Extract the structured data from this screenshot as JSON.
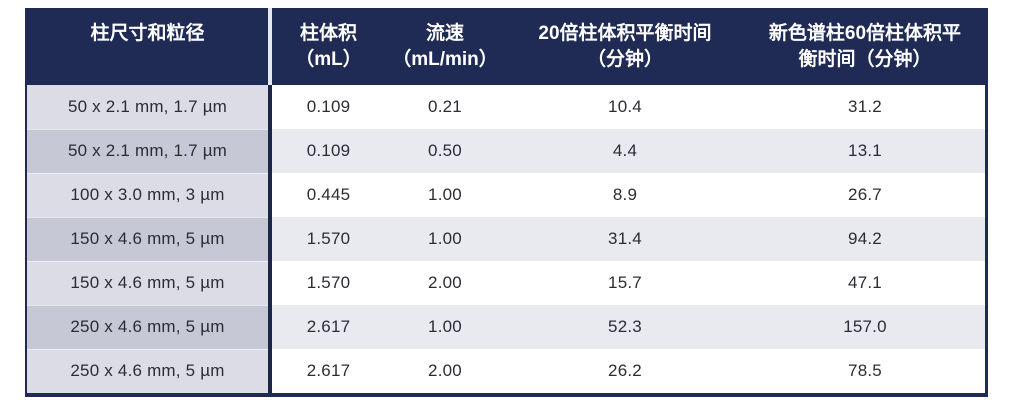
{
  "table": {
    "columns": [
      {
        "lines": [
          "柱尺寸和粒径"
        ]
      },
      {
        "lines": [
          "柱体积",
          "（mL）"
        ]
      },
      {
        "lines": [
          "流速",
          "（mL/min）"
        ]
      },
      {
        "lines": [
          "20倍柱体积平衡时间",
          "（分钟）"
        ]
      },
      {
        "lines": [
          "新色谱柱60倍柱体积平",
          "衡时间（分钟）"
        ]
      }
    ],
    "rows": [
      {
        "size": "50 x 2.1 mm, 1.7 µm",
        "volume": "0.109",
        "flow": "0.21",
        "eq20": "10.4",
        "eq60": "31.2"
      },
      {
        "size": "50 x 2.1 mm, 1.7 µm",
        "volume": "0.109",
        "flow": "0.50",
        "eq20": "4.4",
        "eq60": "13.1"
      },
      {
        "size": "100 x 3.0 mm, 3 µm",
        "volume": "0.445",
        "flow": "1.00",
        "eq20": "8.9",
        "eq60": "26.7"
      },
      {
        "size": "150 x 4.6 mm, 5 µm",
        "volume": "1.570",
        "flow": "1.00",
        "eq20": "31.4",
        "eq60": "94.2"
      },
      {
        "size": "150 x 4.6 mm, 5 µm",
        "volume": "1.570",
        "flow": "2.00",
        "eq20": "15.7",
        "eq60": "47.1"
      },
      {
        "size": "250 x 4.6 mm, 5 µm",
        "volume": "2.617",
        "flow": "1.00",
        "eq20": "52.3",
        "eq60": "157.0"
      },
      {
        "size": "250 x 4.6 mm, 5 µm",
        "volume": "2.617",
        "flow": "2.00",
        "eq20": "26.2",
        "eq60": "78.5"
      }
    ]
  },
  "colors": {
    "header_bg": "#1f2a55",
    "header_text": "#ffffff",
    "border": "#1f2a55",
    "divider_body": "#1c2747",
    "divider_header": "#e6e8f0",
    "col1_odd_bg": "#dbdce5",
    "col1_even_bg": "#c7c8d6",
    "row_odd_bg": "#ffffff",
    "row_even_bg": "#e9eaf0",
    "body_text": "#2c2c34"
  }
}
